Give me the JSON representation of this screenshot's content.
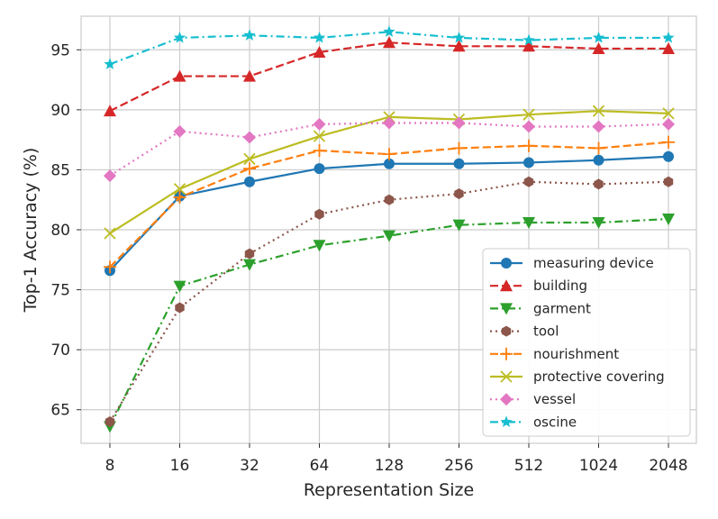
{
  "chart_data": {
    "type": "line",
    "title": "",
    "xlabel": "Representation Size",
    "ylabel": "Top-1 Accuracy (%)",
    "categories": [
      "8",
      "16",
      "32",
      "64",
      "128",
      "256",
      "512",
      "1024",
      "2048"
    ],
    "yticks": [
      65,
      70,
      75,
      80,
      85,
      90,
      95
    ],
    "ylim": [
      62.2,
      97.8
    ],
    "grid": true,
    "legend_position": "bottom-right",
    "series": [
      {
        "name": "measuring device",
        "color": "#1f77b4",
        "dash": "solid",
        "marker": "circle",
        "values": [
          76.6,
          82.8,
          84.0,
          85.1,
          85.5,
          85.5,
          85.6,
          85.8,
          86.1
        ]
      },
      {
        "name": "building",
        "color": "#d62728",
        "dash": "dashed",
        "marker": "triangle-up",
        "values": [
          89.9,
          92.8,
          92.8,
          94.8,
          95.6,
          95.3,
          95.3,
          95.1,
          95.1
        ]
      },
      {
        "name": "garment",
        "color": "#2ca02c",
        "dash": "dashdot",
        "marker": "triangle-down",
        "values": [
          63.6,
          75.3,
          77.1,
          78.7,
          79.5,
          80.4,
          80.6,
          80.6,
          80.9
        ]
      },
      {
        "name": "tool",
        "color": "#8c564b",
        "dash": "dotted",
        "marker": "hexagon",
        "values": [
          64.0,
          73.5,
          78.0,
          81.3,
          82.5,
          83.0,
          84.0,
          83.8,
          84.0
        ]
      },
      {
        "name": "nourishment",
        "color": "#ff7f0e",
        "dash": "dashed",
        "marker": "plus",
        "values": [
          76.9,
          82.7,
          85.1,
          86.6,
          86.3,
          86.8,
          87.0,
          86.8,
          87.3
        ]
      },
      {
        "name": "protective covering",
        "color": "#bcbd22",
        "dash": "solid",
        "marker": "x",
        "values": [
          79.7,
          83.4,
          85.9,
          87.8,
          89.4,
          89.2,
          89.6,
          89.9,
          89.7
        ]
      },
      {
        "name": "vessel",
        "color": "#e377c2",
        "dash": "dotted",
        "marker": "diamond",
        "values": [
          84.5,
          88.2,
          87.7,
          88.8,
          88.9,
          88.9,
          88.6,
          88.6,
          88.8
        ]
      },
      {
        "name": "oscine",
        "color": "#17becf",
        "dash": "dashdot",
        "marker": "star",
        "values": [
          93.8,
          96.0,
          96.2,
          96.0,
          96.5,
          96.0,
          95.8,
          96.0,
          96.0
        ]
      }
    ]
  }
}
